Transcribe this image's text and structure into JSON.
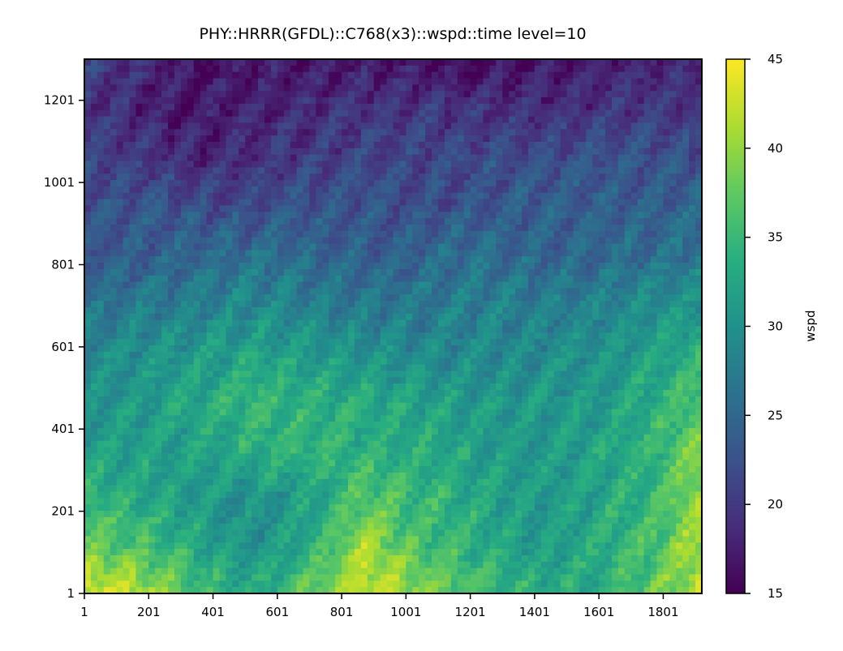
{
  "chart_data": {
    "type": "heatmap",
    "title": "PHY::HRRR(GFDL)::C768(x3)::wspd::time level=10",
    "xlabel": "",
    "ylabel": "",
    "xlim": [
      1,
      1921
    ],
    "ylim": [
      1,
      1301
    ],
    "x_ticks": [
      "1",
      "201",
      "401",
      "601",
      "801",
      "1001",
      "1201",
      "1401",
      "1601",
      "1801"
    ],
    "y_ticks": [
      "1",
      "201",
      "401",
      "601",
      "801",
      "1001",
      "1201"
    ],
    "x_tick_values": [
      1,
      201,
      401,
      601,
      801,
      1001,
      1201,
      1401,
      1601,
      1801
    ],
    "y_tick_values": [
      1,
      201,
      401,
      601,
      801,
      1001,
      1201
    ],
    "colorbar": {
      "label": "wspd",
      "range": [
        15,
        45
      ],
      "ticks": [
        "15",
        "20",
        "25",
        "30",
        "35",
        "40",
        "45"
      ],
      "tick_values": [
        15,
        20,
        25,
        30,
        35,
        40,
        45
      ],
      "colormap": "viridis"
    },
    "grid": false,
    "field_summary": {
      "rows_bottom_to_top": "wind speed decreases from south to north",
      "coarse_grid": [
        [
          44,
          42,
          36,
          33,
          38,
          43,
          40,
          36,
          34,
          33,
          37,
          42
        ],
        [
          38,
          36,
          33,
          30,
          33,
          41,
          36,
          34,
          31,
          33,
          36,
          41
        ],
        [
          35,
          33,
          31,
          30,
          32,
          37,
          35,
          33,
          31,
          32,
          35,
          40
        ],
        [
          32,
          32,
          32,
          34,
          35,
          34,
          33,
          32,
          31,
          32,
          34,
          39
        ],
        [
          30,
          31,
          33,
          35,
          34,
          33,
          32,
          31,
          31,
          31,
          33,
          37
        ],
        [
          29,
          30,
          31,
          32,
          31,
          30,
          29,
          29,
          29,
          30,
          32,
          34
        ],
        [
          26,
          27,
          28,
          29,
          28,
          27,
          27,
          28,
          28,
          28,
          29,
          30
        ],
        [
          23,
          24,
          25,
          26,
          25,
          24,
          25,
          26,
          25,
          25,
          26,
          27
        ],
        [
          22,
          23,
          22,
          22,
          23,
          23,
          22,
          23,
          24,
          24,
          24,
          25
        ],
        [
          21,
          20,
          18,
          19,
          20,
          21,
          21,
          22,
          22,
          23,
          23,
          22
        ],
        [
          20,
          18,
          17,
          18,
          19,
          20,
          20,
          19,
          19,
          19,
          20,
          20
        ],
        [
          21,
          19,
          16,
          17,
          17,
          17,
          16,
          16,
          16,
          17,
          18,
          18
        ]
      ]
    }
  }
}
